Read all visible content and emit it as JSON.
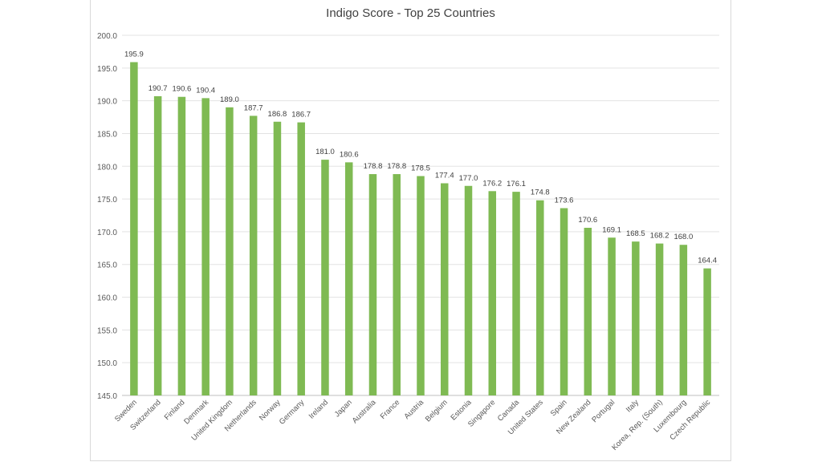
{
  "chart_data": {
    "type": "bar",
    "title": "Indigo Score - Top 25 Countries",
    "xlabel": "",
    "ylabel": "",
    "ylim": [
      145,
      200
    ],
    "yticks": [
      "145.0",
      "150.0",
      "155.0",
      "160.0",
      "165.0",
      "170.0",
      "175.0",
      "180.0",
      "185.0",
      "190.0",
      "195.0",
      "200.0"
    ],
    "grid": true,
    "bar_color": "#7fba53",
    "categories": [
      "Sweden",
      "Switzerland",
      "Finland",
      "Denmark",
      "United Kingdom",
      "Netherlands",
      "Norway",
      "Germany",
      "Ireland",
      "Japan",
      "Australia",
      "France",
      "Austria",
      "Belgium",
      "Estonia",
      "Singapore",
      "Canada",
      "United States",
      "Spain",
      "New Zealand",
      "Portugal",
      "Italy",
      "Korea, Rep. (South)",
      "Luxembourg",
      "Czech Republic"
    ],
    "values": [
      195.9,
      190.7,
      190.6,
      190.4,
      189.0,
      187.7,
      186.8,
      186.7,
      181.0,
      180.6,
      178.8,
      178.8,
      178.5,
      177.4,
      177.0,
      176.2,
      176.1,
      174.8,
      173.6,
      170.6,
      169.1,
      168.5,
      168.2,
      168.0,
      164.4
    ],
    "value_labels": [
      "195.9",
      "190.7",
      "190.6",
      "190.4",
      "189.0",
      "187.7",
      "186.8",
      "186.7",
      "181.0",
      "180.6",
      "178.8",
      "178.8",
      "178.5",
      "177.4",
      "177.0",
      "176.2",
      "176.1",
      "174.8",
      "173.6",
      "170.6",
      "169.1",
      "168.5",
      "168.2",
      "168.0",
      "164.4"
    ]
  }
}
